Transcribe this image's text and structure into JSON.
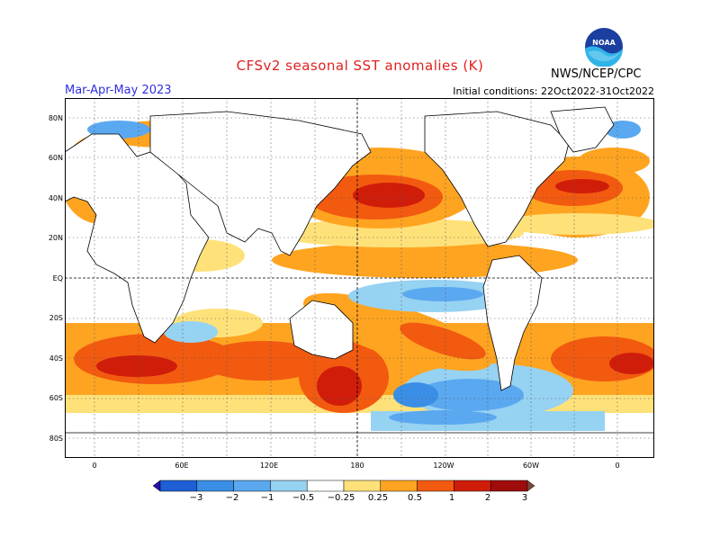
{
  "title": "CFSv2 seasonal SST anomalies (K)",
  "season": "Mar-Apr-May 2023",
  "initial_conditions": "Initial conditions: 22Oct2022-31Oct2022",
  "agency": "NWS/NCEP/CPC",
  "logo_text": "NOAA",
  "map": {
    "lat_labels": [
      "80N",
      "60N",
      "40N",
      "20N",
      "EQ",
      "20S",
      "40S",
      "60S",
      "80S"
    ],
    "lon_labels": [
      "0",
      "60E",
      "120E",
      "180",
      "120W",
      "60W",
      "0"
    ]
  },
  "colorbar": {
    "labels": [
      "−3",
      "−2",
      "−1",
      "−0.5",
      "−0.25",
      "0.25",
      "0.5",
      "1",
      "2",
      "3"
    ],
    "colors": [
      "#2a0ea8",
      "#1e5fd6",
      "#3a8ee6",
      "#5aa8f0",
      "#96d2f2",
      "#ffffff",
      "#ffe17a",
      "#ffa420",
      "#f25a10",
      "#d01d0a",
      "#a00c0c",
      "#7a4a3a"
    ]
  }
}
